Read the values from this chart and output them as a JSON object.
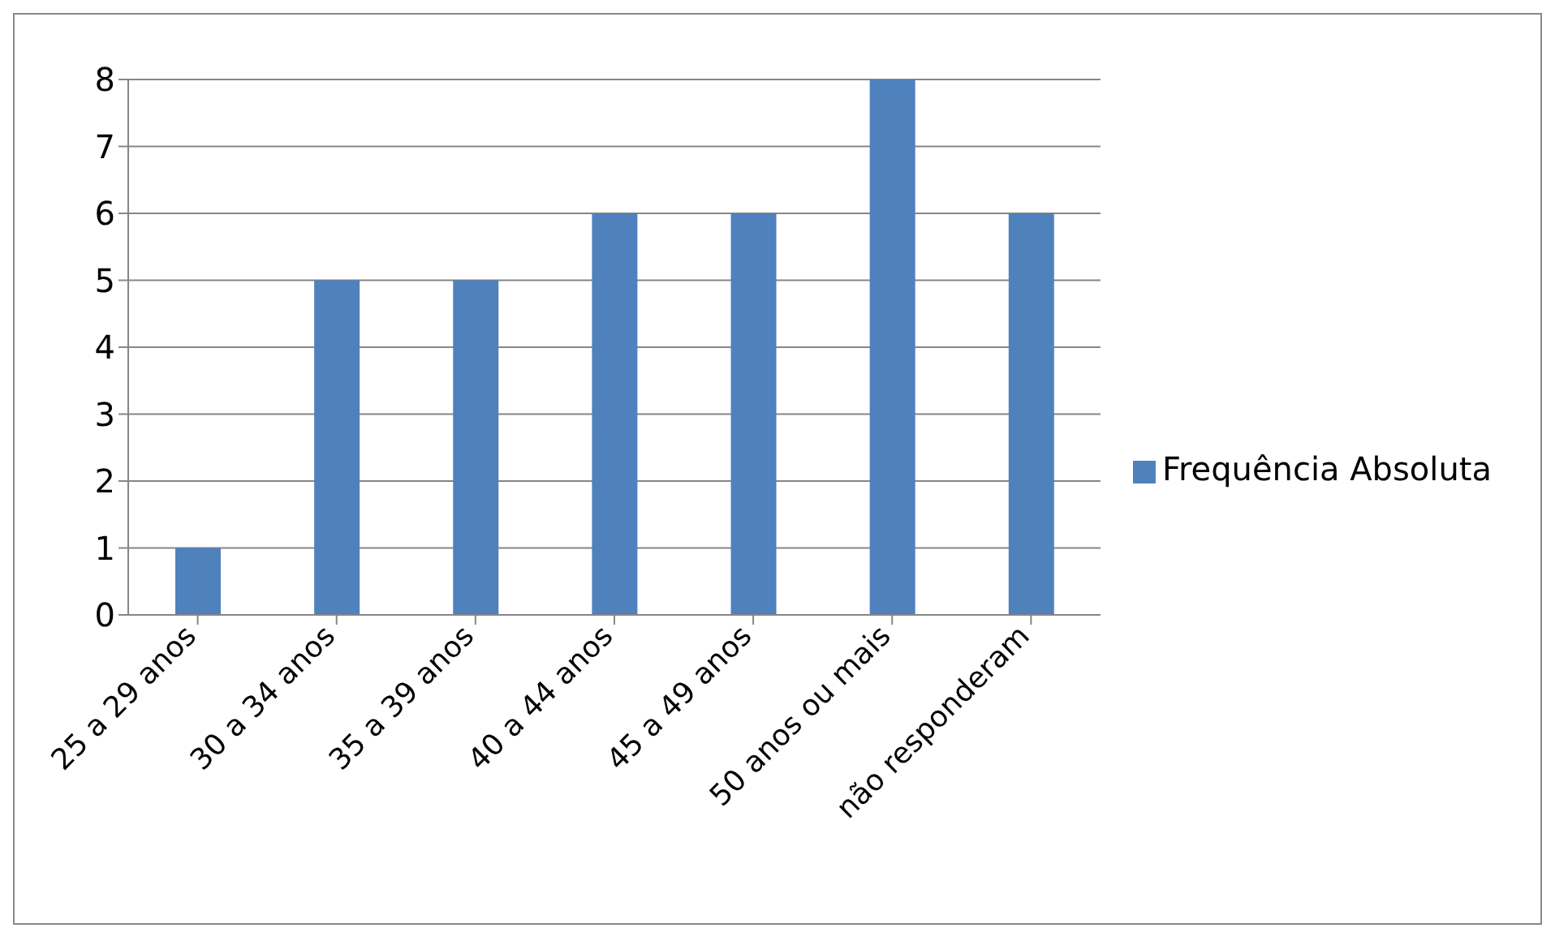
{
  "chart_data": {
    "type": "bar",
    "categories": [
      "25 a 29 anos",
      "30 a 34 anos",
      "35 a 39 anos",
      "40 a 44 anos",
      "45 a 49 anos",
      "50 anos ou mais",
      "não responderam"
    ],
    "series": [
      {
        "name": "Frequência Absoluta",
        "color": "#4f81bd",
        "values": [
          1,
          5,
          5,
          6,
          6,
          8,
          6
        ]
      }
    ],
    "ylim": [
      0,
      8
    ],
    "yticks": [
      0,
      1,
      2,
      3,
      4,
      5,
      6,
      7,
      8
    ],
    "grid": "y",
    "legend": "right"
  }
}
